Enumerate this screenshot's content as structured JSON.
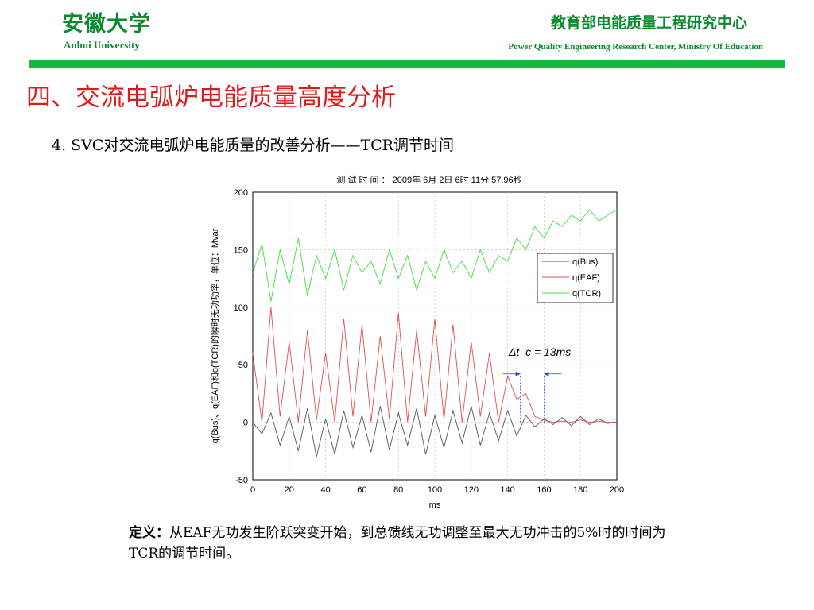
{
  "header": {
    "university_cn": "安徽大学",
    "university_en": "Anhui University",
    "center_cn": "教育部电能质量工程研究中心",
    "center_en": "Power Quality Engineering Research Center, Ministry Of Education"
  },
  "colors": {
    "brand_green": "#0a8a2e",
    "bar_green": "#14b83c",
    "title_red": "#e01a1a"
  },
  "slide": {
    "section_title": "四、交流电弧炉电能质量高度分析",
    "subtitle": "4. SVC对交流电弧炉电能质量的改善分析——TCR调节时间",
    "definition_label": "定义：",
    "definition_text": "从EAF无功发生阶跃突变开始，到总馈线无功调整至最大无功冲击的5%时的时间为TCR的调节时间。"
  },
  "chart_data": {
    "type": "line",
    "title": "测 试 时 间 ： 2009年 6月 2日 6时 11分 57.96秒",
    "xlabel": "ms",
    "ylabel": "q(Bus)、q(EAF)和q(TCR)的瞬时无功功率，单位：Mvar",
    "xlim": [
      0,
      200
    ],
    "ylim": [
      -50,
      200
    ],
    "xticks": [
      0,
      20,
      40,
      60,
      80,
      100,
      120,
      140,
      160,
      180,
      200
    ],
    "yticks": [
      -50,
      0,
      50,
      100,
      150,
      200
    ],
    "grid": true,
    "legend_position": "right",
    "annotation": "Δt_c = 13ms",
    "annotation_markers_ms": [
      147,
      160
    ],
    "series": [
      {
        "name": "q(Bus)",
        "color": "#555555",
        "x": [
          0,
          5,
          10,
          15,
          20,
          25,
          30,
          35,
          40,
          45,
          50,
          55,
          60,
          65,
          70,
          75,
          80,
          85,
          90,
          95,
          100,
          105,
          110,
          115,
          120,
          125,
          130,
          135,
          140,
          145,
          150,
          155,
          160,
          165,
          170,
          175,
          180,
          185,
          190,
          195,
          200
        ],
        "values": [
          0,
          -10,
          8,
          -20,
          5,
          -25,
          12,
          -30,
          3,
          -28,
          10,
          -22,
          6,
          -26,
          14,
          -24,
          8,
          -20,
          12,
          -28,
          6,
          -22,
          10,
          -18,
          14,
          -20,
          8,
          -16,
          10,
          -12,
          6,
          -4,
          3,
          -2,
          4,
          -3,
          5,
          -2,
          3,
          -1,
          0
        ]
      },
      {
        "name": "q(EAF)",
        "color": "#e05050",
        "x": [
          0,
          5,
          10,
          15,
          20,
          25,
          30,
          35,
          40,
          45,
          50,
          55,
          60,
          65,
          70,
          75,
          80,
          85,
          90,
          95,
          100,
          105,
          110,
          115,
          120,
          125,
          130,
          135,
          140,
          145,
          150,
          155,
          160,
          165,
          170,
          175,
          180,
          185,
          190,
          195,
          200
        ],
        "values": [
          60,
          0,
          100,
          5,
          70,
          0,
          80,
          2,
          60,
          0,
          90,
          5,
          85,
          0,
          75,
          3,
          95,
          0,
          80,
          5,
          90,
          2,
          85,
          0,
          70,
          5,
          60,
          0,
          40,
          20,
          25,
          5,
          2,
          0,
          1,
          0,
          2,
          0,
          1,
          0,
          0
        ]
      },
      {
        "name": "q(TCR)",
        "color": "#40dd40",
        "x": [
          0,
          5,
          10,
          15,
          20,
          25,
          30,
          35,
          40,
          45,
          50,
          55,
          60,
          65,
          70,
          75,
          80,
          85,
          90,
          95,
          100,
          105,
          110,
          115,
          120,
          125,
          130,
          135,
          140,
          145,
          150,
          155,
          160,
          165,
          170,
          175,
          180,
          185,
          190,
          195,
          200
        ],
        "values": [
          130,
          155,
          105,
          150,
          120,
          160,
          110,
          145,
          125,
          150,
          115,
          145,
          130,
          140,
          120,
          150,
          125,
          145,
          115,
          140,
          125,
          150,
          130,
          140,
          125,
          150,
          130,
          145,
          140,
          160,
          150,
          170,
          160,
          175,
          170,
          180,
          175,
          185,
          175,
          180,
          185
        ]
      }
    ]
  }
}
